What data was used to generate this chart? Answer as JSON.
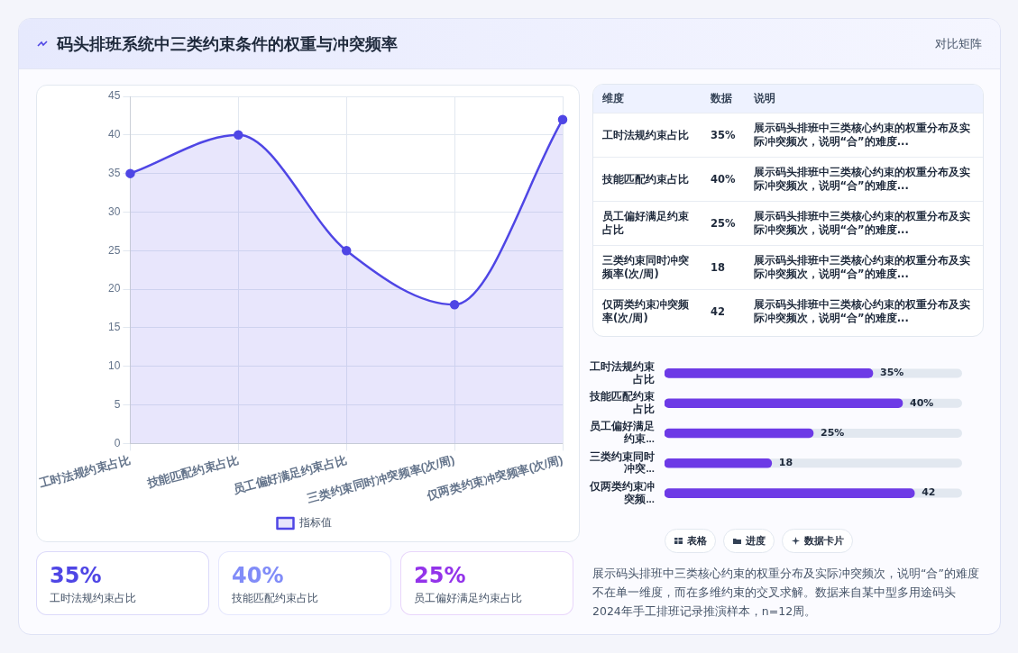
{
  "chart_data": [
    {
      "type": "other",
      "title": "码头排班系统中三类约束条件的权重与冲突频率",
      "subtitle": "对比矩阵"
    },
    {
      "type": "area",
      "categories": [
        "工时法规约束占比",
        "技能匹配约束占比",
        "员工偏好满足约束占比",
        "三类约束同时冲突频率(次/周)",
        "仅两类约束冲突频率(次/周)"
      ],
      "series": [
        {
          "name": "指标值",
          "color": "#4f46e5",
          "values": [
            35,
            40,
            25,
            18,
            42
          ]
        }
      ],
      "ylim": [
        0,
        45
      ],
      "yticks": [
        0,
        5,
        10,
        15,
        20,
        25,
        30,
        35,
        40,
        45
      ],
      "grid": true,
      "legend": "bottom",
      "marker": "circle",
      "annotations": [
        "展示码头排班中三类核心约束的权重分布及实际冲突频次，说明“合”的难度不在单一维度，而在多维约束的交叉求解。数据来自某中型多用途码头2024年手工排班记录推演样本，n=12周。",
        "表格",
        "进度",
        "数据卡片"
      ]
    },
    {
      "type": "other",
      "categories": [
        "工时法规约束占比",
        "技能匹配约束占比",
        "员工偏好满足约束占比",
        "三类约束同时冲突频率(次/周)",
        "仅两类约束冲突频率(次/周)"
      ],
      "value_labels": [
        "35%",
        "40%",
        "25%",
        "18",
        "42"
      ],
      "annotations": [
        "维度",
        "数据",
        "说明",
        "展示码头排班中三类核心约束的权重分布及实际冲突频次，说明“合”的难度...",
        "展示码头排班中三类核心约束的权重分布及实际冲突频次，说明“合”的难度...",
        "展示码头排班中三类核心约束的权重分布及实际冲突频次，说明“合”的难度...",
        "展示码头排班中三类核心约束的权重分布及实际冲突频次，说明“合”的难度...",
        "展示码头排班中三类核心约束的权重分布及实际冲突频次，说明“合”的难度..."
      ]
    },
    {
      "type": "bar",
      "orientation": "horizontal",
      "categories": [
        "工时法规约束占比",
        "技能匹配约束占比",
        "员工偏好满足约束...",
        "三类约束同时冲突...",
        "仅两类约束冲突频..."
      ],
      "values": [
        35,
        40,
        25,
        18,
        42
      ],
      "color": "#6d3ae6",
      "value_labels": [
        "35%",
        "40%",
        "25%",
        "18",
        "42"
      ],
      "tick_labels": "y"
    },
    {
      "type": "other",
      "categories": [
        "工时法规约束占比",
        "技能匹配约束占比",
        "员工偏好满足约束占比"
      ],
      "value_labels": [
        "35%",
        "40%",
        "25%"
      ],
      "colors": [
        "#4f46e5",
        "#818cf8",
        "#9333ea"
      ]
    }
  ]
}
